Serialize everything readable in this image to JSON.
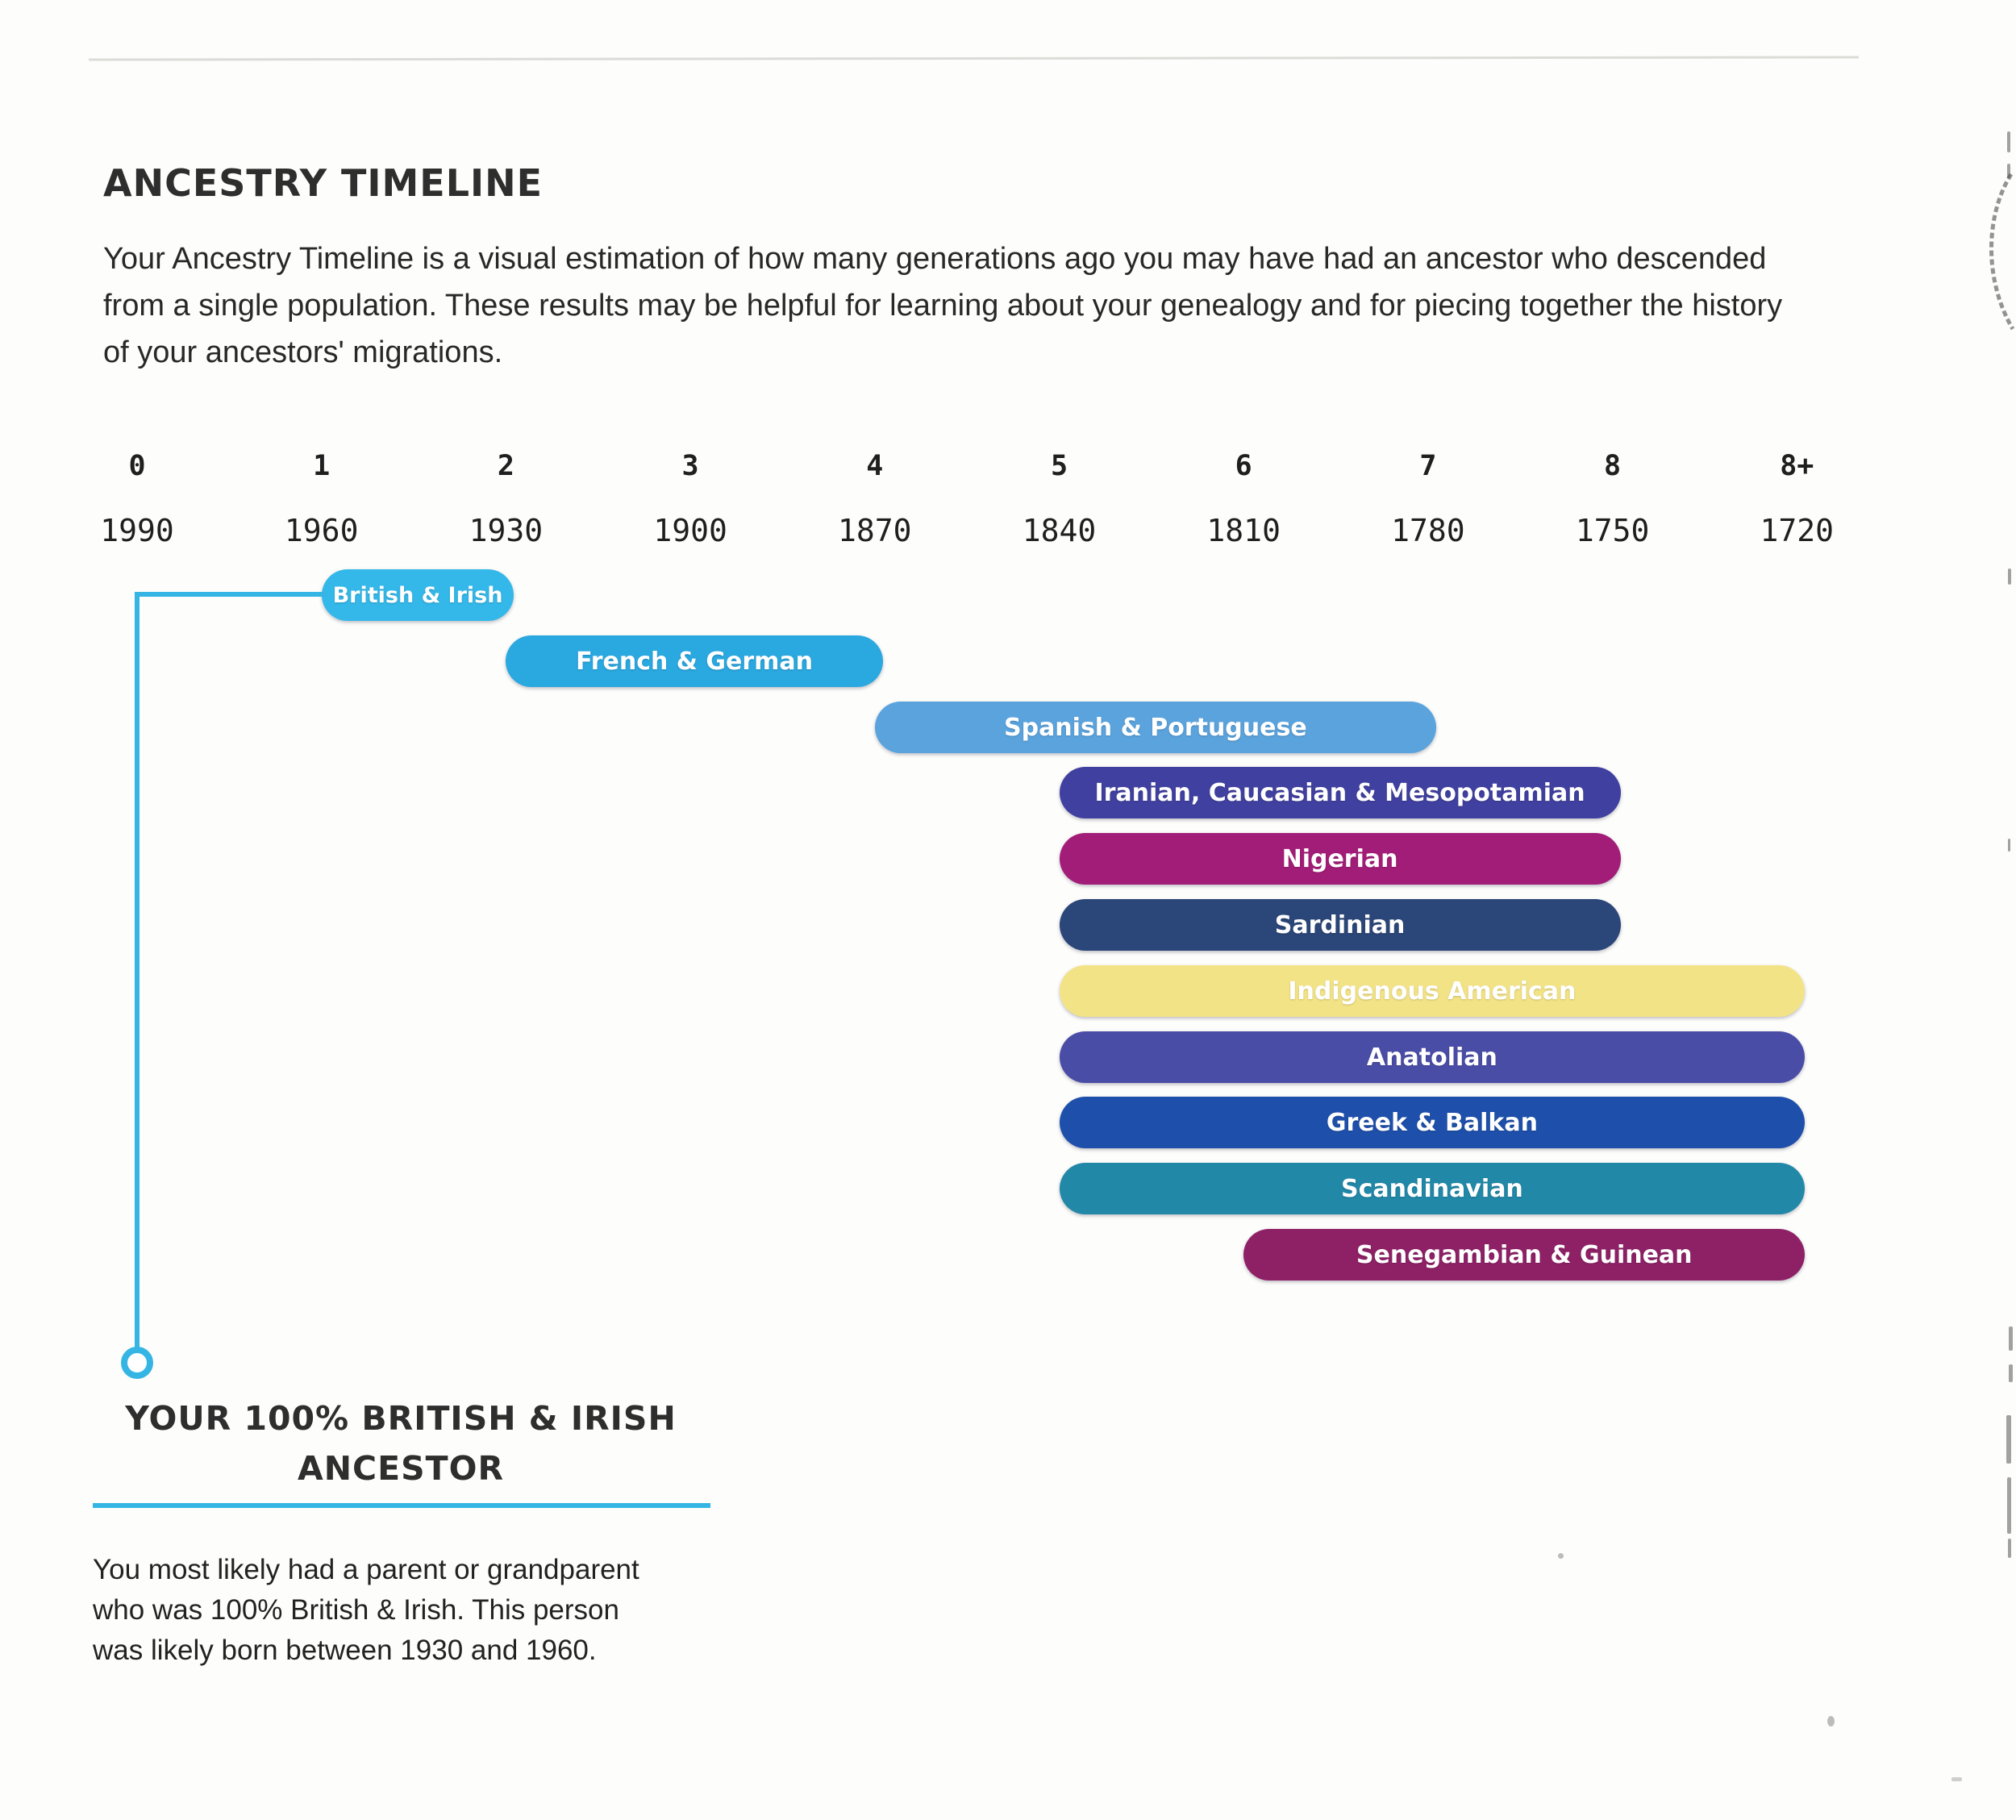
{
  "page": {
    "title": "ANCESTRY TIMELINE",
    "intro": "Your Ancestry Timeline is a visual estimation of how many generations ago you may have had an ancestor who descended from a single population. These results may be helpful for learning about your genealogy and for piecing together the history of your ancestors' migrations."
  },
  "chart_data": {
    "type": "bar",
    "subtype": "ancestry-generation-timeline",
    "x_axis": {
      "generations": [
        "0",
        "1",
        "2",
        "3",
        "4",
        "5",
        "6",
        "7",
        "8",
        "8+"
      ],
      "years": [
        "1990",
        "1960",
        "1930",
        "1900",
        "1870",
        "1840",
        "1810",
        "1780",
        "1750",
        "1720"
      ]
    },
    "bars": [
      {
        "label": "British & Irish",
        "gen_start": "1",
        "gen_end": "2",
        "year_start": "1960",
        "year_end": "1930",
        "color": "#33b8e9",
        "text_color": "#ffffff"
      },
      {
        "label": "French & German",
        "gen_start": "2",
        "gen_end": "4",
        "year_start": "1930",
        "year_end": "1870",
        "color": "#2aa8e0",
        "text_color": "#ffffff"
      },
      {
        "label": "Spanish & Portuguese",
        "gen_start": "4",
        "gen_end": "7",
        "year_start": "1870",
        "year_end": "1780",
        "color": "#5ba3dd",
        "text_color": "#ffffff"
      },
      {
        "label": "Iranian, Caucasian & Mesopotamian",
        "gen_start": "5",
        "gen_end": "8",
        "year_start": "1840",
        "year_end": "1750",
        "color": "#4040a0",
        "text_color": "#ffffff"
      },
      {
        "label": "Nigerian",
        "gen_start": "5",
        "gen_end": "8",
        "year_start": "1840",
        "year_end": "1750",
        "color": "#a21d78",
        "text_color": "#ffffff"
      },
      {
        "label": "Sardinian",
        "gen_start": "5",
        "gen_end": "8",
        "year_start": "1840",
        "year_end": "1750",
        "color": "#2b4678",
        "text_color": "#ffffff"
      },
      {
        "label": "Indigenous American",
        "gen_start": "5",
        "gen_end": "8+",
        "year_start": "1840",
        "year_end": "1720",
        "color": "#f3e387",
        "text_color": "#ffffff"
      },
      {
        "label": "Anatolian",
        "gen_start": "5",
        "gen_end": "8+",
        "year_start": "1840",
        "year_end": "1720",
        "color": "#4a4da6",
        "text_color": "#ffffff"
      },
      {
        "label": "Greek & Balkan",
        "gen_start": "5",
        "gen_end": "8+",
        "year_start": "1840",
        "year_end": "1720",
        "color": "#1e50ab",
        "text_color": "#ffffff"
      },
      {
        "label": "Scandinavian",
        "gen_start": "5",
        "gen_end": "8+",
        "year_start": "1840",
        "year_end": "1720",
        "color": "#2188a8",
        "text_color": "#ffffff"
      },
      {
        "label": "Senegambian & Guinean",
        "gen_start": "6",
        "gen_end": "8+",
        "year_start": "1810",
        "year_end": "1720",
        "color": "#8e2166",
        "text_color": "#ffffff"
      }
    ],
    "legend_position": "none",
    "grid": false
  },
  "ancestor_callout": {
    "line1": "YOUR 100% BRITISH & IRISH",
    "line2": "ANCESTOR",
    "body": "You most likely had a parent or grandparent who was 100% British & Irish. This person was likely born between 1930 and 1960."
  },
  "colors": {
    "accent": "#35b5e4",
    "heading_text": "#2e2e2e",
    "body_text": "#282828"
  }
}
